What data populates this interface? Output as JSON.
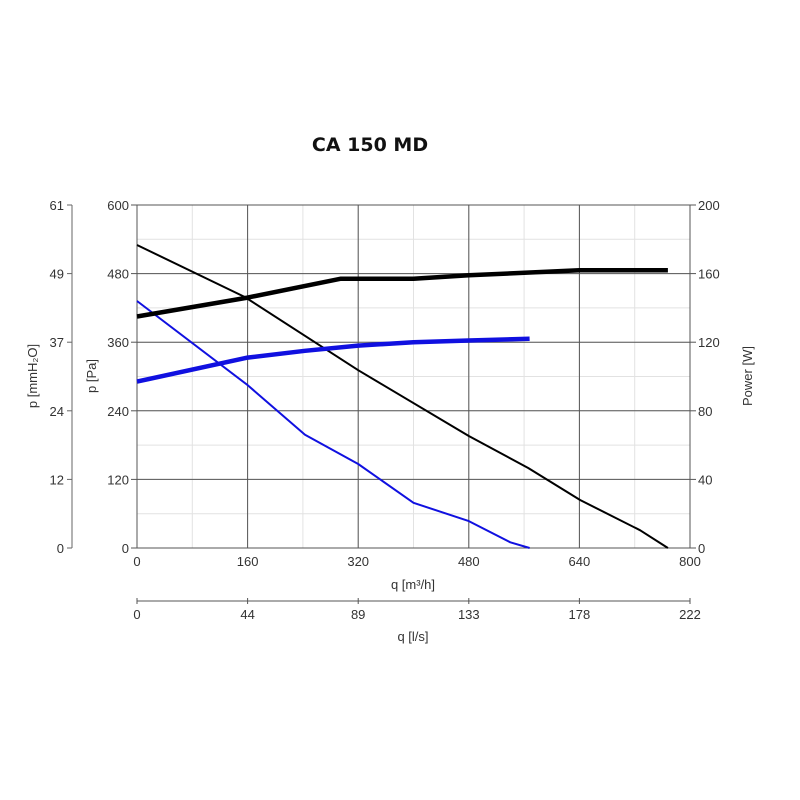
{
  "chart_data": {
    "type": "line",
    "title": "CA 150 MD",
    "xlabel": "q [m³/h]",
    "xlim": [
      0,
      800
    ],
    "xticks": [
      "0",
      "160",
      "320",
      "480",
      "640",
      "800"
    ],
    "x2label": "q [l/s]",
    "x2ticks": [
      "0",
      "44",
      "89",
      "133",
      "178",
      "222"
    ],
    "ylabel": "p [Pa]",
    "ylim": [
      0,
      600
    ],
    "yticks": [
      "0",
      "120",
      "240",
      "360",
      "480",
      "600"
    ],
    "y2label": "p [mmH₂O]",
    "y2ticks": [
      "0",
      "12",
      "24",
      "37",
      "49",
      "61"
    ],
    "y3label": "Power [W]",
    "y3lim": [
      0,
      200
    ],
    "y3ticks": [
      "0",
      "40",
      "80",
      "120",
      "160",
      "200"
    ],
    "grid": true,
    "series": [
      {
        "axis": "pressure",
        "color": "#000000",
        "width": "thin",
        "x": [
          0,
          156,
          320,
          480,
          566,
          641,
          728,
          768
        ],
        "y": [
          530,
          439,
          311,
          196,
          140,
          84,
          31,
          0
        ]
      },
      {
        "axis": "pressure",
        "color": "#1010e0",
        "width": "thin",
        "x": [
          0,
          160,
          243,
          320,
          400,
          480,
          540,
          568
        ],
        "y": [
          432,
          285,
          198,
          147,
          79,
          47,
          10,
          0
        ]
      },
      {
        "axis": "power",
        "color": "#000000",
        "width": "thick",
        "x": [
          0,
          160,
          295,
          400,
          480,
          640,
          768
        ],
        "y": [
          135,
          146,
          157,
          157,
          159,
          162,
          162
        ]
      },
      {
        "axis": "power",
        "color": "#1010e0",
        "width": "thick",
        "x": [
          0,
          160,
          243,
          320,
          400,
          480,
          568
        ],
        "y": [
          97,
          111,
          115,
          118,
          120,
          121,
          122
        ]
      }
    ]
  }
}
